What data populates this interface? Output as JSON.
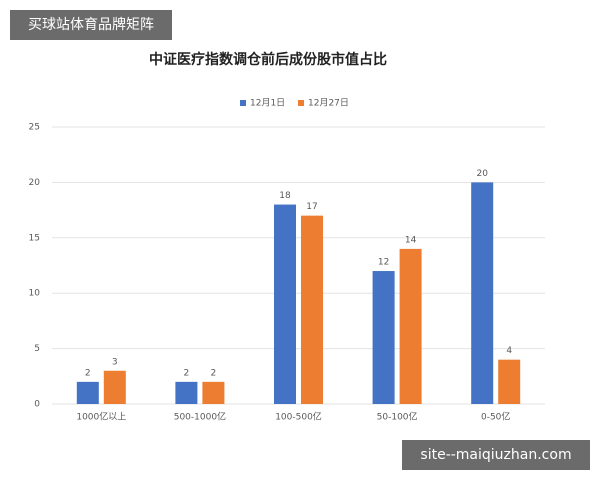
{
  "chart_data": {
    "type": "bar",
    "title": "中证医疗指数调仓前后成份股市值占比",
    "categories": [
      "1000亿以上",
      "500-1000亿",
      "100-500亿",
      "50-100亿",
      "0-50亿"
    ],
    "series": [
      {
        "name": "12月1日",
        "color": "#4472c4",
        "values": [
          2,
          2,
          18,
          12,
          20
        ]
      },
      {
        "name": "12月27日",
        "color": "#ed7d31",
        "values": [
          3,
          2,
          17,
          14,
          4
        ]
      }
    ],
    "ylim": [
      0,
      25
    ],
    "yticks": [
      0,
      5,
      10,
      15,
      20,
      25
    ],
    "grid": true,
    "legend": "top",
    "annotations": [
      "买球站体育品牌矩阵",
      "site--maiqiuzhan.com"
    ]
  }
}
